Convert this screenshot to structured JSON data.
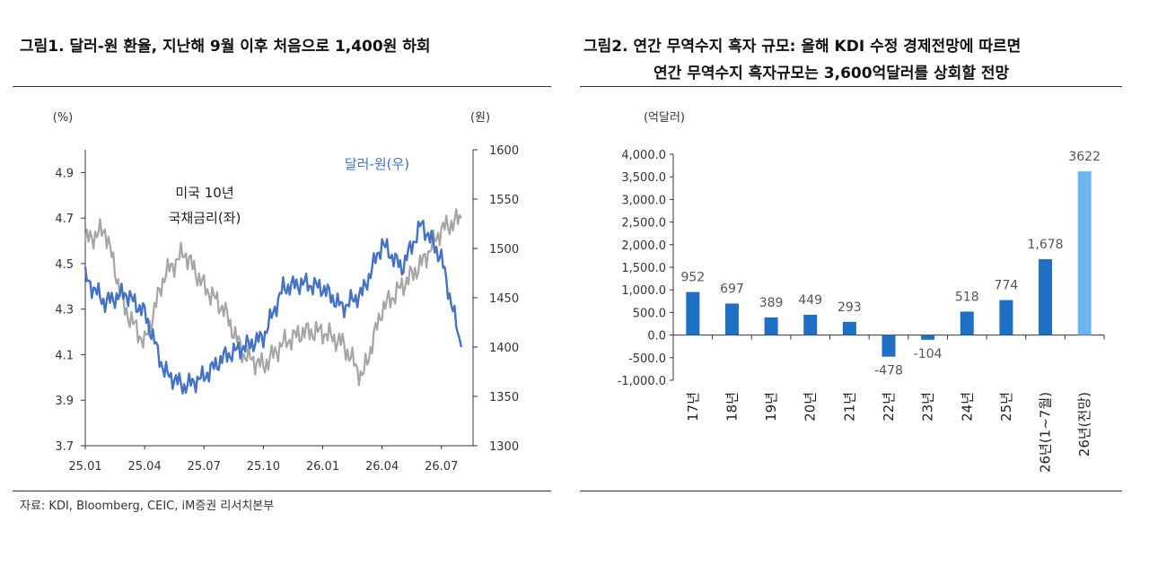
{
  "figure1": {
    "title": "그림1.  달러-원 환율, 지난해 9월 이후 처음으로 1,400원 하회",
    "source": "자료: KDI, Bloomberg, CEIC, iM증권 리서치본부",
    "chart_data": {
      "type": "line",
      "y_left_unit": "(%)",
      "y_right_unit": "(원)",
      "y_left_ticks": [
        "4.9",
        "4.7",
        "4.5",
        "4.3",
        "4.1",
        "3.9",
        "3.7"
      ],
      "y_right_ticks": [
        "1600",
        "1550",
        "1500",
        "1450",
        "1400",
        "1350",
        "1300"
      ],
      "x_ticks": [
        "25.01",
        "25.04",
        "25.07",
        "25.10",
        "26.01",
        "26.04",
        "26.07"
      ],
      "ylim_left": [
        3.7,
        5.0
      ],
      "ylim_right": [
        1300,
        1600
      ],
      "annotations": {
        "treasury_line1": "미국 10년",
        "treasury_line2": "국채금리(좌)",
        "usdkrw": "달러-원(우)"
      },
      "series": [
        {
          "name": "미국 10년 국채금리(좌)",
          "axis": "left",
          "color": "#a6a6a6",
          "x": [
            "25.01",
            "25.02",
            "25.03",
            "25.04",
            "25.05",
            "25.06",
            "25.07",
            "25.08",
            "25.09",
            "25.10",
            "25.11",
            "25.12",
            "26.01",
            "26.02",
            "26.03",
            "26.04",
            "26.05",
            "26.06",
            "26.07",
            "26.08"
          ],
          "values": [
            4.6,
            4.65,
            4.3,
            4.15,
            4.45,
            4.55,
            4.4,
            4.3,
            4.1,
            4.05,
            4.15,
            4.2,
            4.2,
            4.15,
            4.0,
            4.3,
            4.4,
            4.5,
            4.65,
            4.7
          ]
        },
        {
          "name": "달러-원(우)",
          "axis": "right",
          "color": "#4472c4",
          "x": [
            "25.01",
            "25.02",
            "25.03",
            "25.04",
            "25.05",
            "25.06",
            "25.07",
            "25.08",
            "25.09",
            "25.10",
            "25.11",
            "25.12",
            "26.01",
            "26.02",
            "26.03",
            "26.04",
            "26.05",
            "26.06",
            "26.07",
            "26.08"
          ],
          "values": [
            1470,
            1445,
            1455,
            1435,
            1375,
            1360,
            1370,
            1390,
            1400,
            1410,
            1460,
            1465,
            1460,
            1440,
            1455,
            1505,
            1480,
            1525,
            1490,
            1400
          ]
        }
      ]
    }
  },
  "figure2": {
    "title_line1": "그림2.  연간 무역수지 흑자 규모: 올해 KDI 수정 경제전망에 따르면",
    "title_line2": "연간 무역수지 흑자규모는 3,600억달러를 상회할 전망",
    "chart_data": {
      "type": "bar",
      "y_unit": "(억달러)",
      "ylim": [
        -1000,
        4000
      ],
      "y_ticks": [
        "4,000.0",
        "3,500.0",
        "3,000.0",
        "2,500.0",
        "2,000.0",
        "1,500.0",
        "1,000.0",
        "500.0",
        "0.0",
        "-500.0",
        "-1,000.0"
      ],
      "categories": [
        "17년",
        "18년",
        "19년",
        "20년",
        "21년",
        "22년",
        "23년",
        "24년",
        "25년",
        "26년(1~7월)",
        "26년(전망)"
      ],
      "values": [
        952,
        697,
        389,
        449,
        293,
        -478,
        -104,
        518,
        774,
        1678,
        3622
      ],
      "value_labels": [
        "952",
        "697",
        "389",
        "449",
        "293",
        "-478",
        "-104",
        "518",
        "774",
        "1,678",
        "3622"
      ],
      "colors": [
        "#1f6fc5",
        "#1f6fc5",
        "#1f6fc5",
        "#1f6fc5",
        "#1f6fc5",
        "#1f6fc5",
        "#1f6fc5",
        "#1f6fc5",
        "#1f6fc5",
        "#1f6fc5",
        "#6cb6f0"
      ]
    }
  }
}
